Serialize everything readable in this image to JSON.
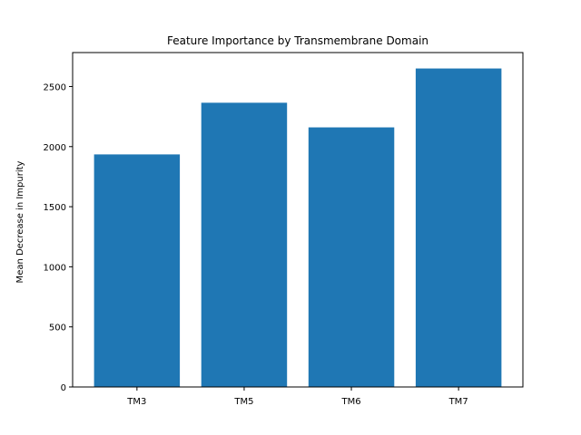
{
  "colors": {
    "bar": "#1f77b4",
    "axis": "#000000",
    "background": "#ffffff"
  },
  "chart_data": {
    "type": "bar",
    "title": "Feature Importance by Transmembrane Domain",
    "xlabel": "",
    "ylabel": "Mean Decrease in Impurity",
    "categories": [
      "TM3",
      "TM5",
      "TM6",
      "TM7"
    ],
    "values": [
      1935,
      2365,
      2160,
      2650
    ],
    "ylim": [
      0,
      2782.5
    ],
    "yticks": [
      0,
      500,
      1000,
      1500,
      2000,
      2500
    ],
    "grid": false,
    "legend": "none"
  }
}
